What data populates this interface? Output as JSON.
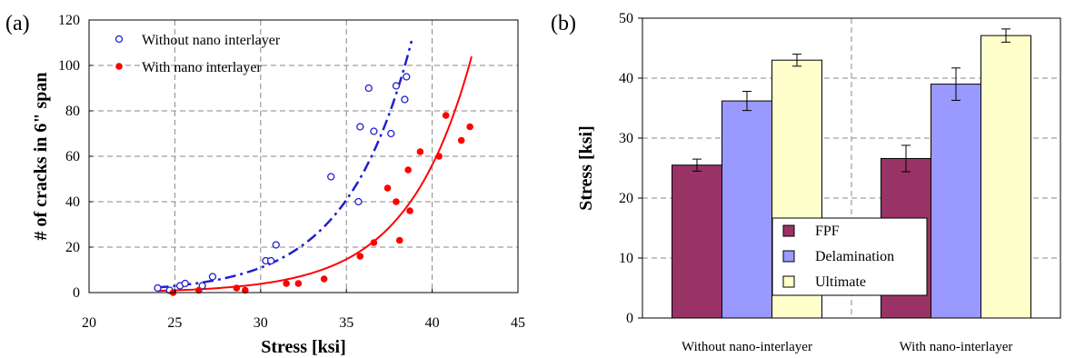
{
  "colors": {
    "without_markers": "#1f1fd0",
    "with_markers": "#ff0000",
    "fpf": "#993366",
    "delamination": "#9999ff",
    "ultimate": "#ffffcc",
    "grid": "#888888"
  },
  "chart_data": [
    {
      "panel_label": "(a)",
      "type": "scatter",
      "xlabel": "Stress [ksi]",
      "ylabel": "# of cracks in 6\" span",
      "xlim": [
        20,
        45
      ],
      "ylim": [
        0,
        120
      ],
      "x_ticks": [
        20,
        25,
        30,
        35,
        40,
        45
      ],
      "y_ticks": [
        0,
        20,
        40,
        60,
        80,
        100,
        120
      ],
      "grid": true,
      "legend_position": "top-left",
      "series": [
        {
          "name": "Without nano interlayer",
          "marker": "open-circle",
          "x": [
            24.0,
            24.7,
            25.3,
            25.6,
            26.6,
            27.2,
            30.3,
            30.6,
            30.9,
            34.1,
            35.7,
            35.8,
            36.3,
            36.6,
            37.6,
            37.9,
            38.4,
            38.5
          ],
          "y": [
            2,
            1,
            3,
            4,
            3,
            7,
            14,
            14,
            21,
            51,
            40,
            73,
            90,
            71,
            70,
            91,
            85,
            95
          ],
          "trend": {
            "style": "dashed",
            "a": 0.0041,
            "b": 0.263,
            "x_range": [
              24,
              38.8
            ]
          }
        },
        {
          "name": "With nano interlayer",
          "marker": "filled-circle",
          "x": [
            24.9,
            26.4,
            28.6,
            29.1,
            31.5,
            32.2,
            33.7,
            35.8,
            36.6,
            37.4,
            37.9,
            38.1,
            38.6,
            38.7,
            39.3,
            40.4,
            40.8,
            41.7,
            42.2
          ],
          "y": [
            0,
            1,
            2,
            1,
            4,
            4,
            6,
            16,
            22,
            46,
            40,
            23,
            54,
            36,
            62,
            60,
            78,
            67,
            73
          ],
          "trend": {
            "style": "solid",
            "a": 0.00124,
            "b": 0.268,
            "x_range": [
              24,
              42.3
            ]
          }
        }
      ]
    },
    {
      "panel_label": "(b)",
      "type": "bar",
      "ylabel": "Stress [ksi]",
      "xlabel": "",
      "ylim": [
        0,
        50
      ],
      "y_ticks": [
        0,
        10,
        20,
        30,
        40,
        50
      ],
      "grid": true,
      "legend_position": "bottom-center",
      "categories": [
        "Without nano-interlayer",
        "With nano-interlayer"
      ],
      "series": [
        {
          "name": "FPF",
          "values": [
            25.5,
            26.6
          ],
          "errors": [
            1.0,
            2.2
          ]
        },
        {
          "name": "Delamination",
          "values": [
            36.2,
            39.0
          ],
          "errors": [
            1.6,
            2.7
          ]
        },
        {
          "name": "Ultimate",
          "values": [
            43.0,
            47.1
          ],
          "errors": [
            1.0,
            1.1
          ]
        }
      ]
    }
  ]
}
